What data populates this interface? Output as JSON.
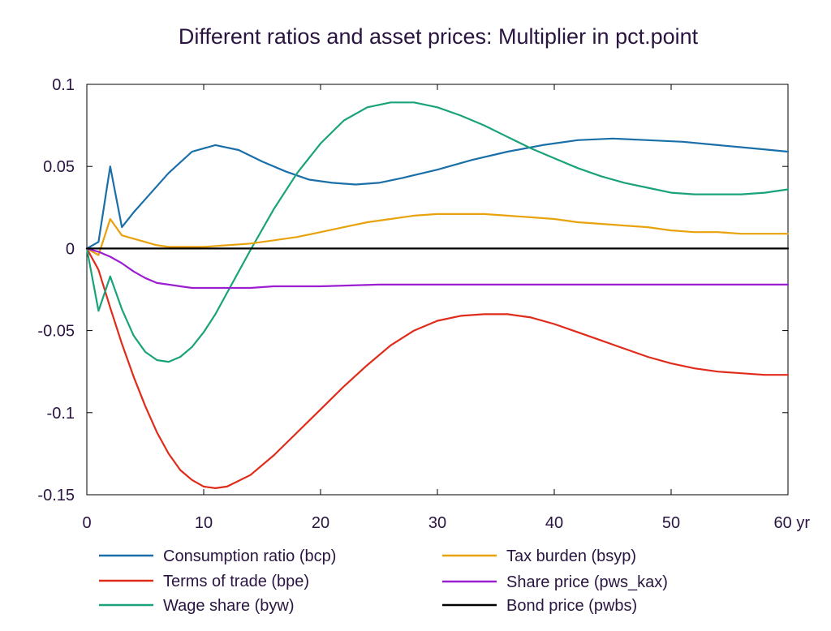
{
  "chart_data": {
    "type": "line",
    "title": "Different ratios and asset prices: Multiplier in pct.point",
    "xlabel": "",
    "ylabel": "",
    "xlim": [
      0,
      60
    ],
    "ylim": [
      -0.15,
      0.1
    ],
    "x_ticks": [
      "0",
      "10",
      "20",
      "30",
      "40",
      "50",
      "60 yr"
    ],
    "y_ticks": [
      "0.1",
      "0.05",
      "0",
      "-0.05",
      "-0.1",
      "-0.15"
    ],
    "y_tick_values": [
      0.1,
      0.05,
      0,
      -0.05,
      -0.1,
      -0.15
    ],
    "x_tick_values": [
      0,
      10,
      20,
      30,
      40,
      50,
      60
    ],
    "grid": false,
    "legend_position": "bottom",
    "series": [
      {
        "name": "Consumption ratio (bcp)",
        "color": "#1a6fa8",
        "x": [
          0,
          1,
          2,
          3,
          4,
          5,
          7,
          9,
          11,
          13,
          15,
          17,
          19,
          21,
          23,
          25,
          27,
          30,
          33,
          36,
          39,
          42,
          45,
          48,
          51,
          54,
          57,
          60
        ],
        "y": [
          0,
          0.004,
          0.05,
          0.013,
          0.022,
          0.03,
          0.046,
          0.059,
          0.063,
          0.06,
          0.053,
          0.047,
          0.042,
          0.04,
          0.039,
          0.04,
          0.043,
          0.048,
          0.054,
          0.059,
          0.063,
          0.066,
          0.067,
          0.066,
          0.065,
          0.063,
          0.061,
          0.059
        ]
      },
      {
        "name": "Terms of trade (bpe)",
        "color": "#e02b1a",
        "x": [
          0,
          1,
          2,
          3,
          4,
          5,
          6,
          7,
          8,
          9,
          10,
          11,
          12,
          14,
          16,
          18,
          20,
          22,
          24,
          26,
          28,
          30,
          32,
          34,
          36,
          38,
          40,
          42,
          44,
          46,
          48,
          50,
          52,
          54,
          56,
          58,
          60
        ],
        "y": [
          0,
          -0.013,
          -0.036,
          -0.058,
          -0.078,
          -0.096,
          -0.112,
          -0.125,
          -0.135,
          -0.141,
          -0.145,
          -0.146,
          -0.145,
          -0.138,
          -0.126,
          -0.112,
          -0.098,
          -0.084,
          -0.071,
          -0.059,
          -0.05,
          -0.044,
          -0.041,
          -0.04,
          -0.04,
          -0.042,
          -0.046,
          -0.051,
          -0.056,
          -0.061,
          -0.066,
          -0.07,
          -0.073,
          -0.075,
          -0.076,
          -0.077,
          -0.077
        ]
      },
      {
        "name": "Wage share (byw)",
        "color": "#1aa37a",
        "x": [
          0,
          1,
          2,
          3,
          4,
          5,
          6,
          7,
          8,
          9,
          10,
          11,
          12,
          14,
          16,
          18,
          20,
          22,
          24,
          26,
          28,
          30,
          32,
          34,
          36,
          38,
          40,
          42,
          44,
          46,
          48,
          50,
          52,
          54,
          56,
          58,
          60
        ],
        "y": [
          0,
          -0.038,
          -0.017,
          -0.037,
          -0.053,
          -0.063,
          -0.068,
          -0.069,
          -0.066,
          -0.06,
          -0.051,
          -0.04,
          -0.027,
          -0.001,
          0.024,
          0.046,
          0.064,
          0.078,
          0.086,
          0.089,
          0.089,
          0.086,
          0.081,
          0.075,
          0.068,
          0.061,
          0.055,
          0.049,
          0.044,
          0.04,
          0.037,
          0.034,
          0.033,
          0.033,
          0.033,
          0.034,
          0.036
        ]
      },
      {
        "name": "Tax burden (bsyp)",
        "color": "#e8a20c",
        "x": [
          0,
          1,
          2,
          3,
          4,
          5,
          6,
          7,
          8,
          9,
          10,
          12,
          14,
          16,
          18,
          20,
          22,
          24,
          26,
          28,
          30,
          32,
          34,
          36,
          38,
          40,
          42,
          44,
          46,
          48,
          50,
          52,
          54,
          56,
          58,
          60
        ],
        "y": [
          0,
          -0.004,
          0.018,
          0.008,
          0.006,
          0.004,
          0.002,
          0.001,
          0.001,
          0.001,
          0.001,
          0.002,
          0.003,
          0.005,
          0.007,
          0.01,
          0.013,
          0.016,
          0.018,
          0.02,
          0.021,
          0.021,
          0.021,
          0.02,
          0.019,
          0.018,
          0.016,
          0.015,
          0.014,
          0.013,
          0.011,
          0.01,
          0.01,
          0.009,
          0.009,
          0.009
        ]
      },
      {
        "name": "Share price (pws_kax)",
        "color": "#9b1fd0",
        "x": [
          0,
          1,
          2,
          3,
          4,
          5,
          6,
          7,
          8,
          9,
          10,
          12,
          14,
          16,
          20,
          25,
          30,
          40,
          50,
          60
        ],
        "y": [
          0,
          -0.002,
          -0.005,
          -0.009,
          -0.014,
          -0.018,
          -0.021,
          -0.022,
          -0.023,
          -0.024,
          -0.024,
          -0.024,
          -0.024,
          -0.023,
          -0.023,
          -0.022,
          -0.022,
          -0.022,
          -0.022,
          -0.022
        ]
      },
      {
        "name": "Bond price (pwbs)",
        "color": "#000000",
        "x": [
          0,
          60
        ],
        "y": [
          0,
          0
        ]
      }
    ]
  }
}
